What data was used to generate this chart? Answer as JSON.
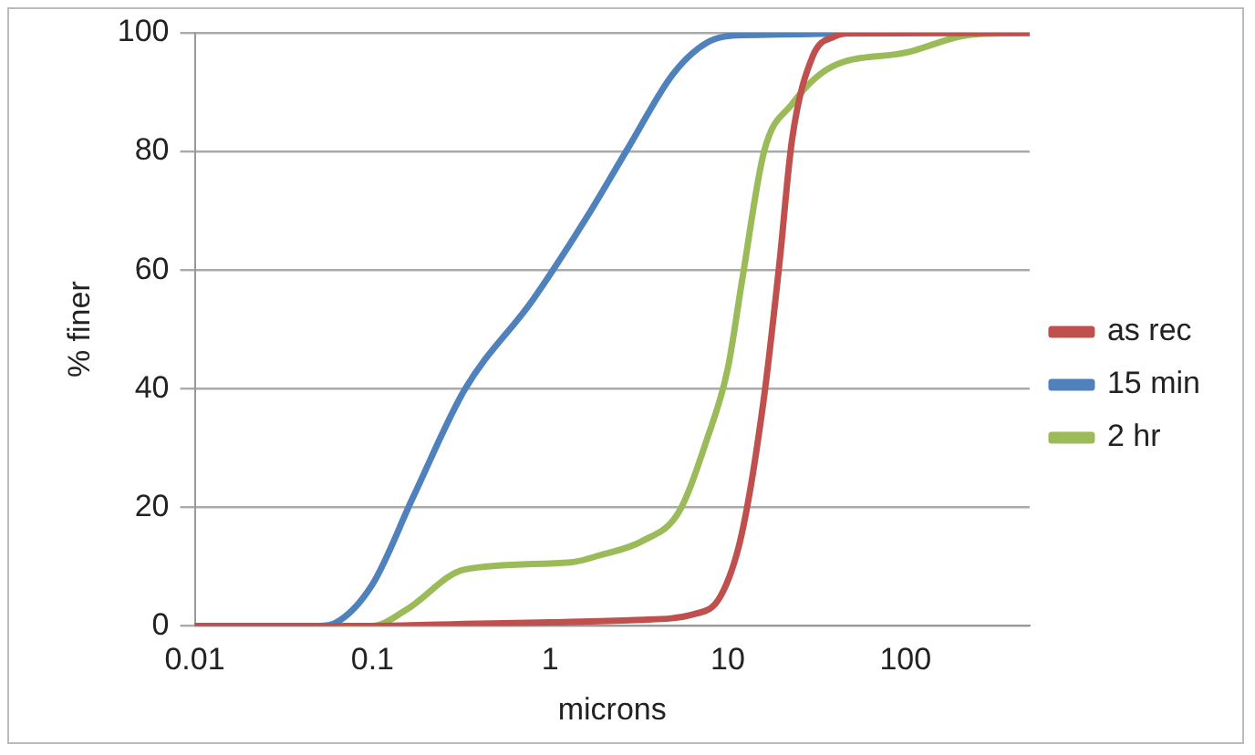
{
  "chart_data": {
    "type": "line",
    "xlabel": "microns",
    "ylabel": "% finer",
    "xlim": [
      0.01,
      500
    ],
    "xticks": [
      0.01,
      0.1,
      1,
      10,
      100
    ],
    "ylim": [
      0,
      100
    ],
    "yticks": [
      0,
      20,
      40,
      60,
      80,
      100
    ],
    "log": "x",
    "grid": "y",
    "legend": "right",
    "marker": "none",
    "line_style": "solid",
    "series": [
      {
        "name": "as rec",
        "color": "#c0504d",
        "x": [
          0.01,
          0.1,
          0.3,
          1,
          3,
          6.5,
          9.1,
          12,
          15.9,
          19.5,
          23,
          30,
          40,
          52,
          500
        ],
        "values": [
          0,
          0,
          0.3,
          0.6,
          1,
          2,
          5,
          15.6,
          38,
          61,
          82,
          96,
          99.4,
          100,
          100
        ]
      },
      {
        "name": "15 min",
        "color": "#4f81bd",
        "x": [
          0.01,
          0.05,
          0.062,
          0.1,
          0.17,
          0.33,
          0.8,
          1.6,
          2.8,
          4.9,
          7.6,
          12,
          500
        ],
        "values": [
          0,
          0,
          0.5,
          7,
          21.8,
          39.8,
          55,
          68.8,
          81,
          93,
          98.3,
          99.6,
          100
        ]
      },
      {
        "name": "2 hr",
        "color": "#9bbb59",
        "x": [
          0.01,
          0.1,
          0.155,
          0.33,
          1.3,
          1.9,
          3.3,
          5.3,
          7.6,
          10,
          12,
          16,
          23,
          37,
          102,
          234,
          500
        ],
        "values": [
          0,
          0,
          2.7,
          9.5,
          10.7,
          11.9,
          14.3,
          19.2,
          31.3,
          43.4,
          58,
          80,
          88,
          94,
          96.7,
          99.7,
          100
        ]
      }
    ]
  }
}
